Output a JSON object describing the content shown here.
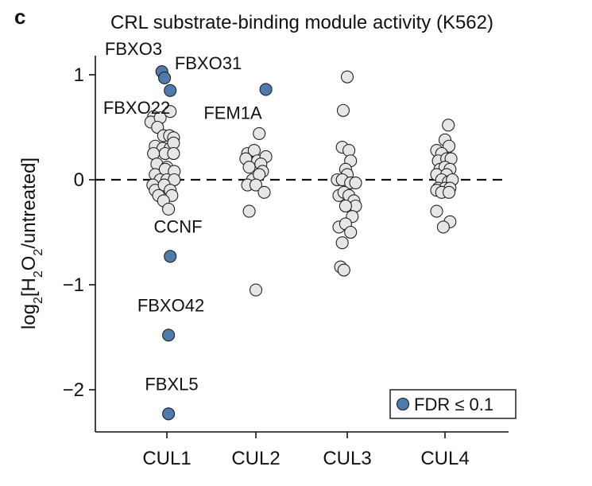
{
  "panel_label": "c",
  "chart_data": {
    "type": "scatter",
    "title": "CRL substrate-binding module activity (K562)",
    "ylabel": "log2[H2O2/untreated]",
    "categories": [
      "CUL1",
      "CUL2",
      "CUL3",
      "CUL4"
    ],
    "yticks": [
      1,
      0,
      -1,
      -2
    ],
    "ytick_labels": [
      "1",
      "0",
      "−1",
      "−2"
    ],
    "ylim": [
      -2.4,
      1.15
    ],
    "reference_line": 0,
    "highlight_color": "#4f7bac",
    "point_color": "#e6e6e6",
    "legend": {
      "label": "FDR ≤ 0.1",
      "position": "bottom-right"
    },
    "series": [
      {
        "values": [
          {
            "c": 0,
            "j": -0.4,
            "y": 0.6
          },
          {
            "c": 0,
            "j": -0.48,
            "y": 0.55
          },
          {
            "c": 0,
            "j": -0.2,
            "y": 0.59
          },
          {
            "c": 0,
            "j": 0.1,
            "y": 0.65
          },
          {
            "c": 0,
            "j": -0.28,
            "y": 0.5
          },
          {
            "c": 0,
            "j": -0.1,
            "y": 0.42
          },
          {
            "c": 0,
            "j": 0.08,
            "y": 0.42
          },
          {
            "c": 0,
            "j": 0.2,
            "y": 0.4
          },
          {
            "c": 0,
            "j": -0.35,
            "y": 0.32
          },
          {
            "c": 0,
            "j": -0.12,
            "y": 0.3
          },
          {
            "c": 0,
            "j": 0.1,
            "y": 0.3
          },
          {
            "c": 0,
            "j": 0.2,
            "y": 0.35
          },
          {
            "c": 0,
            "j": -0.4,
            "y": 0.25
          },
          {
            "c": 0,
            "j": -0.05,
            "y": 0.25
          },
          {
            "c": 0,
            "j": 0.2,
            "y": 0.25
          },
          {
            "c": 0,
            "j": -0.3,
            "y": 0.15
          },
          {
            "c": 0,
            "j": 0.0,
            "y": 0.12
          },
          {
            "c": 0,
            "j": -0.35,
            "y": 0.05
          },
          {
            "c": 0,
            "j": -0.05,
            "y": 0.1
          },
          {
            "c": 0,
            "j": 0.22,
            "y": 0.08
          },
          {
            "c": 0,
            "j": -0.2,
            "y": 0.0
          },
          {
            "c": 0,
            "j": 0.0,
            "y": 0.0
          },
          {
            "c": 0,
            "j": 0.22,
            "y": 0.0
          },
          {
            "c": 0,
            "j": -0.42,
            "y": -0.05
          },
          {
            "c": 0,
            "j": -0.35,
            "y": -0.1
          },
          {
            "c": 0,
            "j": -0.08,
            "y": -0.05
          },
          {
            "c": 0,
            "j": 0.1,
            "y": -0.1
          },
          {
            "c": 0,
            "j": -0.25,
            "y": -0.15
          },
          {
            "c": 0,
            "j": 0.15,
            "y": -0.15
          },
          {
            "c": 0,
            "j": -0.1,
            "y": -0.2
          },
          {
            "c": 0,
            "j": 0.05,
            "y": -0.28
          },
          {
            "c": 1,
            "j": -0.25,
            "y": 0.25
          },
          {
            "c": 1,
            "j": -0.05,
            "y": 0.28
          },
          {
            "c": 1,
            "j": 0.1,
            "y": 0.44
          },
          {
            "c": 1,
            "j": -0.3,
            "y": 0.2
          },
          {
            "c": 1,
            "j": 0.05,
            "y": 0.18
          },
          {
            "c": 1,
            "j": 0.3,
            "y": 0.22
          },
          {
            "c": 1,
            "j": -0.2,
            "y": 0.12
          },
          {
            "c": 1,
            "j": 0.15,
            "y": 0.15
          },
          {
            "c": 1,
            "j": 0.2,
            "y": 0.08
          },
          {
            "c": 1,
            "j": -0.1,
            "y": 0.0
          },
          {
            "c": 1,
            "j": 0.1,
            "y": 0.05
          },
          {
            "c": 1,
            "j": -0.25,
            "y": -0.05
          },
          {
            "c": 1,
            "j": 0.0,
            "y": -0.05
          },
          {
            "c": 1,
            "j": 0.25,
            "y": -0.12
          },
          {
            "c": 1,
            "j": -0.2,
            "y": -0.3
          },
          {
            "c": 1,
            "j": 0.0,
            "y": -1.05
          },
          {
            "c": 2,
            "j": 0.0,
            "y": 0.98
          },
          {
            "c": 2,
            "j": -0.12,
            "y": 0.66
          },
          {
            "c": 2,
            "j": -0.15,
            "y": 0.31
          },
          {
            "c": 2,
            "j": 0.05,
            "y": 0.28
          },
          {
            "c": 2,
            "j": 0.1,
            "y": 0.18
          },
          {
            "c": 2,
            "j": -0.05,
            "y": 0.1
          },
          {
            "c": 2,
            "j": 0.0,
            "y": 0.05
          },
          {
            "c": 2,
            "j": -0.3,
            "y": 0.0
          },
          {
            "c": 2,
            "j": -0.15,
            "y": 0.0
          },
          {
            "c": 2,
            "j": 0.1,
            "y": -0.03
          },
          {
            "c": 2,
            "j": 0.25,
            "y": -0.03
          },
          {
            "c": 2,
            "j": -0.25,
            "y": -0.15
          },
          {
            "c": 2,
            "j": -0.1,
            "y": -0.12
          },
          {
            "c": 2,
            "j": 0.05,
            "y": -0.15
          },
          {
            "c": 2,
            "j": 0.2,
            "y": -0.2
          },
          {
            "c": 2,
            "j": 0.25,
            "y": -0.25
          },
          {
            "c": 2,
            "j": -0.05,
            "y": -0.25
          },
          {
            "c": 2,
            "j": 0.15,
            "y": -0.35
          },
          {
            "c": 2,
            "j": -0.25,
            "y": -0.45
          },
          {
            "c": 2,
            "j": -0.05,
            "y": -0.42
          },
          {
            "c": 2,
            "j": 0.1,
            "y": -0.5
          },
          {
            "c": 2,
            "j": -0.15,
            "y": -0.6
          },
          {
            "c": 2,
            "j": -0.2,
            "y": -0.83
          },
          {
            "c": 2,
            "j": -0.1,
            "y": -0.86
          },
          {
            "c": 3,
            "j": 0.1,
            "y": 0.52
          },
          {
            "c": 3,
            "j": 0.0,
            "y": 0.38
          },
          {
            "c": 3,
            "j": 0.12,
            "y": 0.32
          },
          {
            "c": 3,
            "j": -0.25,
            "y": 0.28
          },
          {
            "c": 3,
            "j": -0.1,
            "y": 0.25
          },
          {
            "c": 3,
            "j": -0.2,
            "y": 0.18
          },
          {
            "c": 3,
            "j": 0.05,
            "y": 0.2
          },
          {
            "c": 3,
            "j": 0.18,
            "y": 0.2
          },
          {
            "c": 3,
            "j": -0.15,
            "y": 0.1
          },
          {
            "c": 3,
            "j": 0.0,
            "y": 0.12
          },
          {
            "c": 3,
            "j": 0.15,
            "y": 0.1
          },
          {
            "c": 3,
            "j": -0.25,
            "y": 0.05
          },
          {
            "c": 3,
            "j": 0.05,
            "y": 0.05
          },
          {
            "c": 3,
            "j": -0.1,
            "y": 0.0
          },
          {
            "c": 3,
            "j": 0.1,
            "y": -0.02
          },
          {
            "c": 3,
            "j": 0.22,
            "y": 0.0
          },
          {
            "c": 3,
            "j": -0.2,
            "y": -0.08
          },
          {
            "c": 3,
            "j": 0.0,
            "y": -0.08
          },
          {
            "c": 3,
            "j": 0.15,
            "y": -0.08
          },
          {
            "c": 3,
            "j": -0.25,
            "y": -0.1
          },
          {
            "c": 3,
            "j": -0.1,
            "y": -0.12
          },
          {
            "c": 3,
            "j": 0.12,
            "y": -0.12
          },
          {
            "c": 3,
            "j": -0.25,
            "y": -0.3
          },
          {
            "c": 3,
            "j": 0.15,
            "y": -0.4
          },
          {
            "c": 3,
            "j": -0.05,
            "y": -0.45
          }
        ]
      },
      {
        "name": "FDR ≤ 0.1",
        "values": [
          {
            "c": 0,
            "j": -0.15,
            "y": 1.03,
            "label": "FBXO3"
          },
          {
            "c": 0,
            "j": -0.07,
            "y": 0.97,
            "label": ""
          },
          {
            "c": 0,
            "j": 0.1,
            "y": 0.85,
            "label": ""
          },
          {
            "c": 0,
            "j": 0.1,
            "y": -0.73,
            "label": "CCNF"
          },
          {
            "c": 0,
            "j": 0.05,
            "y": -1.48,
            "label": "FBXO42"
          },
          {
            "c": 0,
            "j": 0.05,
            "y": -2.23,
            "label": "FBXL5"
          },
          {
            "c": 1,
            "j": 0.3,
            "y": 0.86,
            "label": "FEM1A"
          }
        ]
      }
    ],
    "annotations": [
      {
        "text": "FBXO3",
        "x": 0,
        "y": 1.03
      },
      {
        "text": "FBXO31",
        "x": 0,
        "y": 0.97
      },
      {
        "text": "FBXO22",
        "x": 0,
        "y": 0.85
      },
      {
        "text": "FEM1A",
        "x": 1,
        "y": 0.86
      },
      {
        "text": "CCNF",
        "x": 0,
        "y": -0.73
      },
      {
        "text": "FBXO42",
        "x": 0,
        "y": -1.48
      },
      {
        "text": "FBXL5",
        "x": 0,
        "y": -2.23
      }
    ]
  }
}
